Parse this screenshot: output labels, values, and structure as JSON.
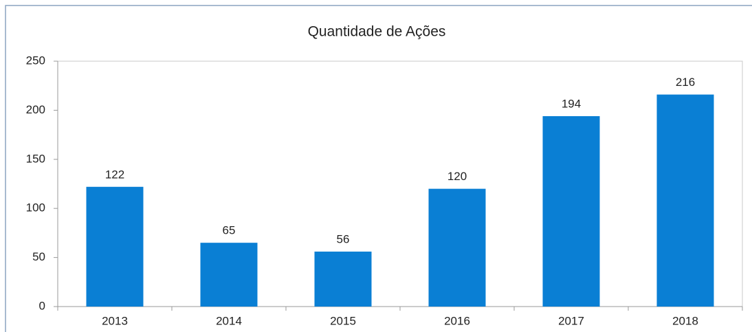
{
  "chart_data": {
    "type": "bar",
    "title": "Quantidade de Ações",
    "categories": [
      "2013",
      "2014",
      "2015",
      "2016",
      "2017",
      "2018"
    ],
    "values": [
      122,
      65,
      56,
      120,
      194,
      216
    ],
    "color": "#0a7fd4",
    "ylim": [
      0,
      250
    ],
    "yticks": [
      0,
      50,
      100,
      150,
      200,
      250
    ],
    "grid": false
  }
}
